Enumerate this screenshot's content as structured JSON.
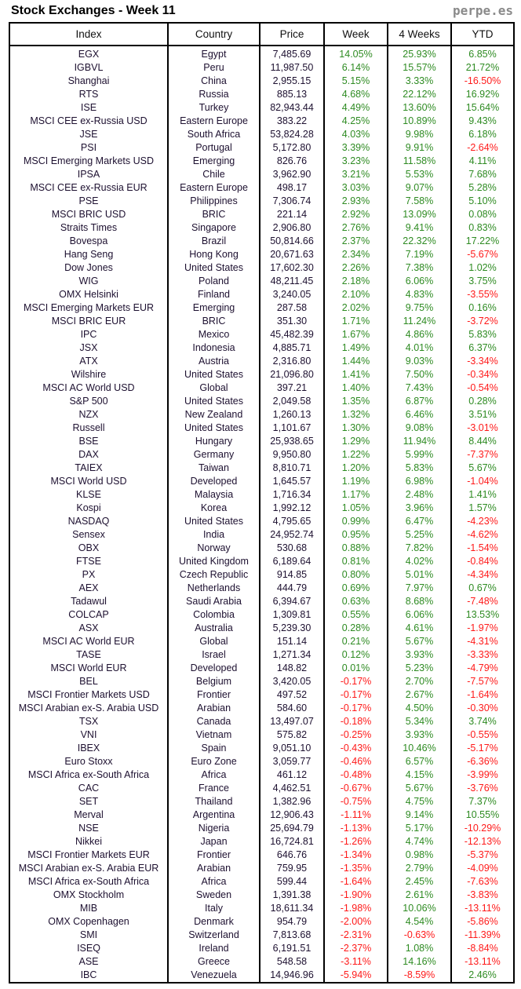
{
  "header": {
    "title": "Stock Exchanges - Week 11",
    "brand": "perpe.es"
  },
  "colors": {
    "positive": "#2e8b22",
    "negative": "#ff1a1a"
  },
  "table": {
    "columns": [
      "Index",
      "Country",
      "Price",
      "Week",
      "4 Weeks",
      "YTD"
    ],
    "rows": [
      [
        "EGX",
        "Egypt",
        "7,485.69",
        "14.05%",
        "25.93%",
        "6.85%"
      ],
      [
        "IGBVL",
        "Peru",
        "11,987.50",
        "6.14%",
        "15.57%",
        "21.72%"
      ],
      [
        "Shanghai",
        "China",
        "2,955.15",
        "5.15%",
        "3.33%",
        "-16.50%"
      ],
      [
        "RTS",
        "Russia",
        "885.13",
        "4.68%",
        "22.12%",
        "16.92%"
      ],
      [
        "ISE",
        "Turkey",
        "82,943.44",
        "4.49%",
        "13.60%",
        "15.64%"
      ],
      [
        "MSCI CEE ex-Russia USD",
        "Eastern Europe",
        "383.22",
        "4.25%",
        "10.89%",
        "9.43%"
      ],
      [
        "JSE",
        "South Africa",
        "53,824.28",
        "4.03%",
        "9.98%",
        "6.18%"
      ],
      [
        "PSI",
        "Portugal",
        "5,172.80",
        "3.39%",
        "9.91%",
        "-2.64%"
      ],
      [
        "MSCI Emerging Markets USD",
        "Emerging",
        "826.76",
        "3.23%",
        "11.58%",
        "4.11%"
      ],
      [
        "IPSA",
        "Chile",
        "3,962.90",
        "3.21%",
        "5.53%",
        "7.68%"
      ],
      [
        "MSCI CEE ex-Russia EUR",
        "Eastern Europe",
        "498.17",
        "3.03%",
        "9.07%",
        "5.28%"
      ],
      [
        "PSE",
        "Philippines",
        "7,306.74",
        "2.93%",
        "7.58%",
        "5.10%"
      ],
      [
        "MSCI BRIC USD",
        "BRIC",
        "221.14",
        "2.92%",
        "13.09%",
        "0.08%"
      ],
      [
        "Straits Times",
        "Singapore",
        "2,906.80",
        "2.76%",
        "9.41%",
        "0.83%"
      ],
      [
        "Bovespa",
        "Brazil",
        "50,814.66",
        "2.37%",
        "22.32%",
        "17.22%"
      ],
      [
        "Hang Seng",
        "Hong Kong",
        "20,671.63",
        "2.34%",
        "7.19%",
        "-5.67%"
      ],
      [
        "Dow Jones",
        "United States",
        "17,602.30",
        "2.26%",
        "7.38%",
        "1.02%"
      ],
      [
        "WIG",
        "Poland",
        "48,211.45",
        "2.18%",
        "6.06%",
        "3.75%"
      ],
      [
        "OMX Helsinki",
        "Finland",
        "3,240.05",
        "2.10%",
        "4.83%",
        "-3.55%"
      ],
      [
        "MSCI Emerging Markets EUR",
        "Emerging",
        "287.58",
        "2.02%",
        "9.75%",
        "0.16%"
      ],
      [
        "MSCI BRIC EUR",
        "BRIC",
        "351.30",
        "1.71%",
        "11.24%",
        "-3.72%"
      ],
      [
        "IPC",
        "Mexico",
        "45,482.39",
        "1.67%",
        "4.86%",
        "5.83%"
      ],
      [
        "JSX",
        "Indonesia",
        "4,885.71",
        "1.49%",
        "4.01%",
        "6.37%"
      ],
      [
        "ATX",
        "Austria",
        "2,316.80",
        "1.44%",
        "9.03%",
        "-3.34%"
      ],
      [
        "Wilshire",
        "United States",
        "21,096.80",
        "1.41%",
        "7.50%",
        "-0.34%"
      ],
      [
        "MSCI AC World USD",
        "Global",
        "397.21",
        "1.40%",
        "7.43%",
        "-0.54%"
      ],
      [
        "S&P 500",
        "United States",
        "2,049.58",
        "1.35%",
        "6.87%",
        "0.28%"
      ],
      [
        "NZX",
        "New Zealand",
        "1,260.13",
        "1.32%",
        "6.46%",
        "3.51%"
      ],
      [
        "Russell",
        "United States",
        "1,101.67",
        "1.30%",
        "9.08%",
        "-3.01%"
      ],
      [
        "BSE",
        "Hungary",
        "25,938.65",
        "1.29%",
        "11.94%",
        "8.44%"
      ],
      [
        "DAX",
        "Germany",
        "9,950.80",
        "1.22%",
        "5.99%",
        "-7.37%"
      ],
      [
        "TAIEX",
        "Taiwan",
        "8,810.71",
        "1.20%",
        "5.83%",
        "5.67%"
      ],
      [
        "MSCI World USD",
        "Developed",
        "1,645.57",
        "1.19%",
        "6.98%",
        "-1.04%"
      ],
      [
        "KLSE",
        "Malaysia",
        "1,716.34",
        "1.17%",
        "2.48%",
        "1.41%"
      ],
      [
        "Kospi",
        "Korea",
        "1,992.12",
        "1.05%",
        "3.96%",
        "1.57%"
      ],
      [
        "NASDAQ",
        "United States",
        "4,795.65",
        "0.99%",
        "6.47%",
        "-4.23%"
      ],
      [
        "Sensex",
        "India",
        "24,952.74",
        "0.95%",
        "5.25%",
        "-4.62%"
      ],
      [
        "OBX",
        "Norway",
        "530.68",
        "0.88%",
        "7.82%",
        "-1.54%"
      ],
      [
        "FTSE",
        "United Kingdom",
        "6,189.64",
        "0.81%",
        "4.02%",
        "-0.84%"
      ],
      [
        "PX",
        "Czech Republic",
        "914.85",
        "0.80%",
        "5.01%",
        "-4.34%"
      ],
      [
        "AEX",
        "Netherlands",
        "444.79",
        "0.69%",
        "7.97%",
        "0.67%"
      ],
      [
        "Tadawul",
        "Saudi Arabia",
        "6,394.67",
        "0.63%",
        "8.68%",
        "-7.48%"
      ],
      [
        "COLCAP",
        "Colombia",
        "1,309.81",
        "0.55%",
        "6.06%",
        "13.53%"
      ],
      [
        "ASX",
        "Australia",
        "5,239.30",
        "0.28%",
        "4.61%",
        "-1.97%"
      ],
      [
        "MSCI AC World EUR",
        "Global",
        "151.14",
        "0.21%",
        "5.67%",
        "-4.31%"
      ],
      [
        "TASE",
        "Israel",
        "1,271.34",
        "0.12%",
        "3.93%",
        "-3.33%"
      ],
      [
        "MSCI World EUR",
        "Developed",
        "148.82",
        "0.01%",
        "5.23%",
        "-4.79%"
      ],
      [
        "BEL",
        "Belgium",
        "3,420.05",
        "-0.17%",
        "2.70%",
        "-7.57%"
      ],
      [
        "MSCI Frontier Markets USD",
        "Frontier",
        "497.52",
        "-0.17%",
        "2.67%",
        "-1.64%"
      ],
      [
        "MSCI Arabian ex-S. Arabia USD",
        "Arabian",
        "584.60",
        "-0.17%",
        "4.50%",
        "-0.30%"
      ],
      [
        "TSX",
        "Canada",
        "13,497.07",
        "-0.18%",
        "5.34%",
        "3.74%"
      ],
      [
        "VNI",
        "Vietnam",
        "575.82",
        "-0.25%",
        "3.93%",
        "-0.55%"
      ],
      [
        "IBEX",
        "Spain",
        "9,051.10",
        "-0.43%",
        "10.46%",
        "-5.17%"
      ],
      [
        "Euro Stoxx",
        "Euro Zone",
        "3,059.77",
        "-0.46%",
        "6.57%",
        "-6.36%"
      ],
      [
        "MSCI Africa ex-South Africa",
        "Africa",
        "461.12",
        "-0.48%",
        "4.15%",
        "-3.99%"
      ],
      [
        "CAC",
        "France",
        "4,462.51",
        "-0.67%",
        "5.67%",
        "-3.76%"
      ],
      [
        "SET",
        "Thailand",
        "1,382.96",
        "-0.75%",
        "4.75%",
        "7.37%"
      ],
      [
        "Merval",
        "Argentina",
        "12,906.43",
        "-1.11%",
        "9.14%",
        "10.55%"
      ],
      [
        "NSE",
        "Nigeria",
        "25,694.79",
        "-1.13%",
        "5.17%",
        "-10.29%"
      ],
      [
        "Nikkei",
        "Japan",
        "16,724.81",
        "-1.26%",
        "4.74%",
        "-12.13%"
      ],
      [
        "MSCI Frontier Markets EUR",
        "Frontier",
        "646.76",
        "-1.34%",
        "0.98%",
        "-5.37%"
      ],
      [
        "MSCI Arabian ex-S. Arabia EUR",
        "Arabian",
        "759.95",
        "-1.35%",
        "2.79%",
        "-4.09%"
      ],
      [
        "MSCI Africa ex-South Africa",
        "Africa",
        "599.44",
        "-1.64%",
        "2.45%",
        "-7.63%"
      ],
      [
        "OMX Stockholm",
        "Sweden",
        "1,391.38",
        "-1.90%",
        "2.61%",
        "-3.83%"
      ],
      [
        "MIB",
        "Italy",
        "18,611.34",
        "-1.98%",
        "10.06%",
        "-13.11%"
      ],
      [
        "OMX Copenhagen",
        "Denmark",
        "954.79",
        "-2.00%",
        "4.54%",
        "-5.86%"
      ],
      [
        "SMI",
        "Switzerland",
        "7,813.68",
        "-2.31%",
        "-0.63%",
        "-11.39%"
      ],
      [
        "ISEQ",
        "Ireland",
        "6,191.51",
        "-2.37%",
        "1.08%",
        "-8.84%"
      ],
      [
        "ASE",
        "Greece",
        "548.58",
        "-3.11%",
        "14.16%",
        "-13.11%"
      ],
      [
        "IBC",
        "Venezuela",
        "14,946.96",
        "-5.94%",
        "-8.59%",
        "2.46%"
      ]
    ]
  }
}
